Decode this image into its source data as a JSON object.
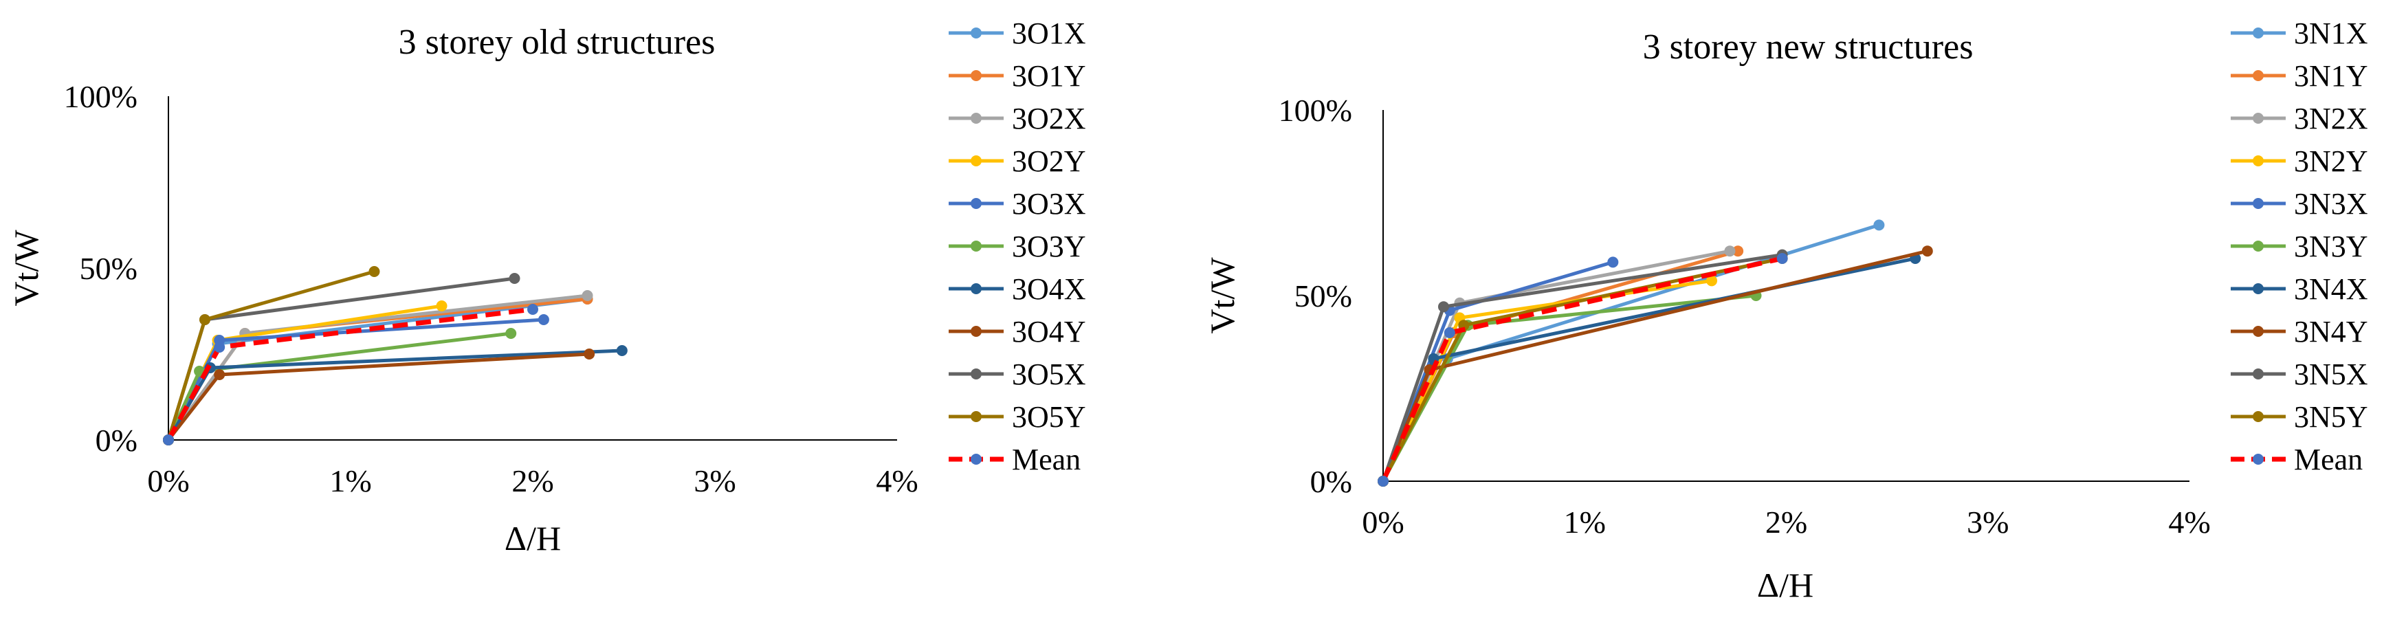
{
  "chart_data": [
    {
      "type": "line",
      "title": "3 storey old structures",
      "xlabel": "Δ/H",
      "ylabel": "Vt/W",
      "xlim": [
        0,
        4
      ],
      "ylim": [
        0,
        100
      ],
      "x_ticks": [
        "0%",
        "1%",
        "2%",
        "3%",
        "4%"
      ],
      "y_ticks": [
        "0%",
        "50%",
        "100%"
      ],
      "grid": false,
      "legend_position": "right",
      "series": [
        {
          "name": "3O1X",
          "color": "#5B9BD5",
          "dash": false,
          "points": [
            [
              0,
              0
            ],
            [
              0.27,
              28
            ],
            [
              2.3,
              41
            ]
          ]
        },
        {
          "name": "3O1Y",
          "color": "#ED7D31",
          "dash": false,
          "points": [
            [
              0,
              0
            ],
            [
              0.42,
              31
            ],
            [
              2.3,
              41
            ]
          ]
        },
        {
          "name": "3O2X",
          "color": "#A5A5A5",
          "dash": false,
          "points": [
            [
              0,
              0
            ],
            [
              0.42,
              31
            ],
            [
              2.3,
              42
            ]
          ]
        },
        {
          "name": "3O2Y",
          "color": "#FFC000",
          "dash": false,
          "points": [
            [
              0,
              0
            ],
            [
              0.27,
              29
            ],
            [
              1.5,
              39
            ]
          ]
        },
        {
          "name": "3O3X",
          "color": "#4472C4",
          "dash": false,
          "points": [
            [
              0,
              0
            ],
            [
              0.28,
              29
            ],
            [
              2.06,
              35
            ]
          ]
        },
        {
          "name": "3O3Y",
          "color": "#70AD47",
          "dash": false,
          "points": [
            [
              0,
              0
            ],
            [
              0.17,
              20
            ],
            [
              1.88,
              31
            ]
          ]
        },
        {
          "name": "3O4X",
          "color": "#255E91",
          "dash": false,
          "points": [
            [
              0,
              0
            ],
            [
              0.23,
              21
            ],
            [
              2.49,
              26
            ]
          ]
        },
        {
          "name": "3O4Y",
          "color": "#9E480E",
          "dash": false,
          "points": [
            [
              0,
              0
            ],
            [
              0.28,
              19
            ],
            [
              2.31,
              25
            ]
          ]
        },
        {
          "name": "3O5X",
          "color": "#636363",
          "dash": false,
          "points": [
            [
              0,
              0
            ],
            [
              0.2,
              35
            ],
            [
              1.9,
              47
            ]
          ]
        },
        {
          "name": "3O5Y",
          "color": "#997300",
          "dash": false,
          "points": [
            [
              0,
              0
            ],
            [
              0.2,
              35
            ],
            [
              1.13,
              49
            ]
          ]
        },
        {
          "name": "Mean",
          "color": "#FF0000",
          "dash": true,
          "marker_color": "#4472C4",
          "points": [
            [
              0,
              0
            ],
            [
              0.28,
              27
            ],
            [
              2.0,
              38
            ]
          ]
        }
      ]
    },
    {
      "type": "line",
      "title": "3 storey new structures",
      "xlabel": "Δ/H",
      "ylabel": "Vt/W",
      "xlim": [
        0,
        4
      ],
      "ylim": [
        0,
        100
      ],
      "x_ticks": [
        "0%",
        "1%",
        "2%",
        "3%",
        "4%"
      ],
      "y_ticks": [
        "0%",
        "50%",
        "100%"
      ],
      "grid": false,
      "legend_position": "right",
      "series": [
        {
          "name": "3N1X",
          "color": "#5B9BD5",
          "dash": false,
          "points": [
            [
              0,
              0
            ],
            [
              0.32,
              33
            ],
            [
              2.46,
              69
            ]
          ]
        },
        {
          "name": "3N1Y",
          "color": "#ED7D31",
          "dash": false,
          "points": [
            [
              0,
              0
            ],
            [
              0.35,
              40
            ],
            [
              1.76,
              62
            ]
          ]
        },
        {
          "name": "3N2X",
          "color": "#A5A5A5",
          "dash": false,
          "points": [
            [
              0,
              0
            ],
            [
              0.38,
              48
            ],
            [
              1.72,
              62
            ]
          ]
        },
        {
          "name": "3N2Y",
          "color": "#FFC000",
          "dash": false,
          "points": [
            [
              0,
              0
            ],
            [
              0.38,
              44
            ],
            [
              1.63,
              54
            ]
          ]
        },
        {
          "name": "3N3X",
          "color": "#4472C4",
          "dash": false,
          "points": [
            [
              0,
              0
            ],
            [
              0.33,
              46
            ],
            [
              1.14,
              59
            ]
          ]
        },
        {
          "name": "3N3Y",
          "color": "#70AD47",
          "dash": false,
          "points": [
            [
              0,
              0
            ],
            [
              0.42,
              42
            ],
            [
              1.85,
              50
            ]
          ]
        },
        {
          "name": "3N4X",
          "color": "#255E91",
          "dash": false,
          "points": [
            [
              0,
              0
            ],
            [
              0.25,
              33
            ],
            [
              2.64,
              60
            ]
          ]
        },
        {
          "name": "3N4Y",
          "color": "#9E480E",
          "dash": false,
          "points": [
            [
              0,
              0
            ],
            [
              0.23,
              30
            ],
            [
              2.7,
              62
            ]
          ]
        },
        {
          "name": "3N5X",
          "color": "#636363",
          "dash": false,
          "points": [
            [
              0,
              0
            ],
            [
              0.3,
              47
            ],
            [
              1.98,
              61
            ]
          ]
        },
        {
          "name": "3N5Y",
          "color": "#997300",
          "dash": false,
          "points": [
            [
              0,
              0
            ],
            [
              0.4,
              42
            ],
            [
              1.98,
              60
            ]
          ]
        },
        {
          "name": "Mean",
          "color": "#FF0000",
          "dash": true,
          "marker_color": "#4472C4",
          "points": [
            [
              0,
              0
            ],
            [
              0.33,
              40
            ],
            [
              1.98,
              60
            ]
          ]
        }
      ]
    }
  ]
}
